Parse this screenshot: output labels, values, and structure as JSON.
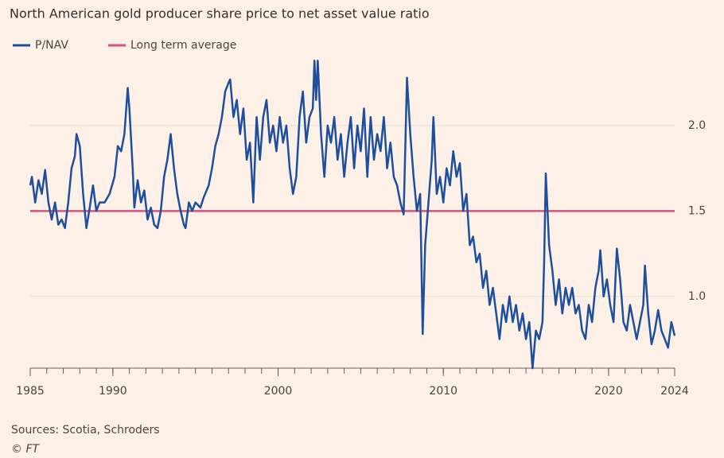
{
  "chart_data": {
    "type": "line",
    "title": "North American gold producer share price to net asset value ratio",
    "source": "Sources: Scotia, Schroders",
    "credit": "© FT",
    "x": [
      1985.0,
      1985.1,
      1985.3,
      1985.5,
      1985.7,
      1985.9,
      1986.1,
      1986.3,
      1986.5,
      1986.7,
      1986.9,
      1987.1,
      1987.3,
      1987.5,
      1987.7,
      1987.8,
      1988.0,
      1988.2,
      1988.4,
      1988.6,
      1988.8,
      1989.0,
      1989.2,
      1989.5,
      1989.8,
      1990.1,
      1990.3,
      1990.5,
      1990.7,
      1990.9,
      1991.0,
      1991.2,
      1991.3,
      1991.5,
      1991.7,
      1991.9,
      1992.1,
      1992.3,
      1992.5,
      1992.7,
      1992.9,
      1993.1,
      1993.3,
      1993.5,
      1993.7,
      1993.9,
      1994.1,
      1994.3,
      1994.4,
      1994.6,
      1994.8,
      1995.0,
      1995.3,
      1995.5,
      1995.8,
      1996.0,
      1996.2,
      1996.4,
      1996.6,
      1996.8,
      1997.0,
      1997.1,
      1997.3,
      1997.5,
      1997.7,
      1997.9,
      1998.1,
      1998.3,
      1998.5,
      1998.7,
      1998.9,
      1999.1,
      1999.3,
      1999.5,
      1999.7,
      1999.9,
      2000.1,
      2000.3,
      2000.5,
      2000.7,
      2000.9,
      2001.1,
      2001.3,
      2001.5,
      2001.7,
      2001.9,
      2002.1,
      2002.2,
      2002.3,
      2002.4,
      2002.6,
      2002.8,
      2003.0,
      2003.2,
      2003.4,
      2003.6,
      2003.8,
      2004.0,
      2004.2,
      2004.4,
      2004.6,
      2004.8,
      2005.0,
      2005.2,
      2005.4,
      2005.6,
      2005.8,
      2006.0,
      2006.2,
      2006.4,
      2006.6,
      2006.8,
      2007.0,
      2007.2,
      2007.4,
      2007.6,
      2007.8,
      2008.0,
      2008.2,
      2008.4,
      2008.6,
      2008.75,
      2008.9,
      2009.1,
      2009.3,
      2009.4,
      2009.6,
      2009.8,
      2010.0,
      2010.2,
      2010.4,
      2010.6,
      2010.8,
      2011.0,
      2011.2,
      2011.4,
      2011.6,
      2011.8,
      2012.0,
      2012.2,
      2012.4,
      2012.6,
      2012.8,
      2013.0,
      2013.2,
      2013.4,
      2013.6,
      2013.8,
      2014.0,
      2014.2,
      2014.4,
      2014.6,
      2014.8,
      2015.0,
      2015.2,
      2015.4,
      2015.6,
      2015.8,
      2016.0,
      2016.1,
      2016.2,
      2016.4,
      2016.6,
      2016.8,
      2017.0,
      2017.2,
      2017.4,
      2017.6,
      2017.8,
      2018.0,
      2018.2,
      2018.4,
      2018.6,
      2018.8,
      2019.0,
      2019.2,
      2019.4,
      2019.5,
      2019.7,
      2019.9,
      2020.1,
      2020.3,
      2020.5,
      2020.7,
      2020.9,
      2021.1,
      2021.3,
      2021.5,
      2021.7,
      2021.9,
      2022.1,
      2022.2,
      2022.4,
      2022.6,
      2022.8,
      2023.0,
      2023.2,
      2023.4,
      2023.6,
      2023.8,
      2024.0
    ],
    "series": [
      {
        "name": "P/NAV",
        "color": "#1d4f9e",
        "values": [
          1.65,
          1.7,
          1.55,
          1.68,
          1.6,
          1.74,
          1.55,
          1.45,
          1.55,
          1.42,
          1.45,
          1.4,
          1.55,
          1.75,
          1.82,
          1.95,
          1.88,
          1.6,
          1.4,
          1.52,
          1.65,
          1.5,
          1.55,
          1.55,
          1.6,
          1.7,
          1.88,
          1.85,
          1.95,
          2.22,
          2.1,
          1.75,
          1.52,
          1.68,
          1.55,
          1.62,
          1.45,
          1.52,
          1.42,
          1.4,
          1.5,
          1.7,
          1.8,
          1.95,
          1.75,
          1.6,
          1.5,
          1.42,
          1.4,
          1.55,
          1.5,
          1.55,
          1.52,
          1.58,
          1.65,
          1.75,
          1.88,
          1.95,
          2.05,
          2.2,
          2.25,
          2.27,
          2.05,
          2.15,
          1.95,
          2.1,
          1.8,
          1.9,
          1.55,
          2.05,
          1.8,
          2.05,
          2.15,
          1.9,
          2.0,
          1.85,
          2.05,
          1.9,
          2.0,
          1.75,
          1.6,
          1.7,
          2.05,
          2.2,
          1.9,
          2.05,
          2.1,
          2.38,
          2.15,
          2.38,
          1.95,
          1.7,
          2.0,
          1.9,
          2.05,
          1.8,
          1.95,
          1.7,
          1.9,
          2.05,
          1.75,
          2.0,
          1.85,
          2.1,
          1.7,
          2.05,
          1.8,
          1.95,
          1.85,
          2.05,
          1.75,
          1.9,
          1.7,
          1.65,
          1.55,
          1.48,
          2.28,
          1.95,
          1.7,
          1.5,
          1.6,
          0.78,
          1.3,
          1.55,
          1.8,
          2.05,
          1.6,
          1.7,
          1.55,
          1.75,
          1.65,
          1.85,
          1.7,
          1.78,
          1.5,
          1.6,
          1.3,
          1.35,
          1.2,
          1.25,
          1.05,
          1.15,
          0.95,
          1.05,
          0.9,
          0.75,
          0.95,
          0.85,
          1.0,
          0.85,
          0.95,
          0.8,
          0.9,
          0.75,
          0.85,
          0.58,
          0.8,
          0.75,
          0.85,
          1.2,
          1.72,
          1.3,
          1.15,
          0.95,
          1.1,
          0.9,
          1.05,
          0.95,
          1.05,
          0.9,
          0.95,
          0.8,
          0.75,
          0.95,
          0.85,
          1.05,
          1.15,
          1.27,
          1.0,
          1.1,
          0.95,
          0.85,
          1.28,
          1.1,
          0.85,
          0.8,
          0.95,
          0.85,
          0.75,
          0.85,
          0.95,
          1.18,
          0.9,
          0.72,
          0.8,
          0.92,
          0.8,
          0.75,
          0.7,
          0.85,
          0.77
        ]
      }
    ],
    "reference_lines": [
      {
        "name": "Long term average",
        "value": 1.5,
        "color": "#d2557f"
      }
    ],
    "xlim": [
      1985,
      2024
    ],
    "xticks": [
      1985,
      1990,
      2000,
      2010,
      2020,
      2024
    ],
    "xminorticks": [
      1985,
      1986,
      1987,
      1988,
      1989,
      1990,
      1991,
      1992,
      1993,
      1994,
      1995,
      1996,
      1997,
      1998,
      1999,
      2000,
      2001,
      2002,
      2003,
      2004,
      2005,
      2006,
      2007,
      2008,
      2009,
      2010,
      2011,
      2012,
      2013,
      2014,
      2015,
      2016,
      2017,
      2018,
      2019,
      2020,
      2021,
      2022,
      2023,
      2024
    ],
    "ylim": [
      0.58,
      2.4
    ],
    "yticks": [
      {
        "value": 1,
        "label": "1.0"
      },
      {
        "value": 1.5,
        "label": "1.5"
      },
      {
        "value": 2,
        "label": "2.0"
      }
    ],
    "grid": true
  }
}
